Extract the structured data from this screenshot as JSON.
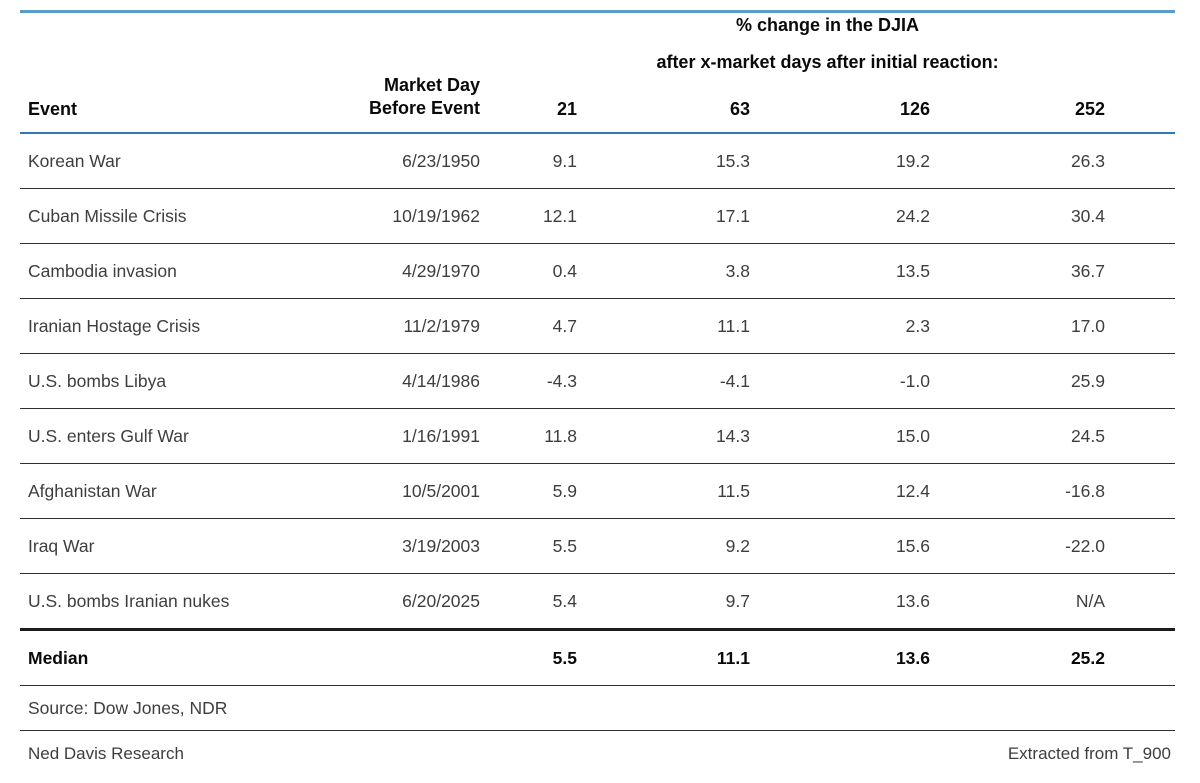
{
  "header": {
    "title_line1": "% change in the DJIA",
    "title_line2": "after x-market days after initial reaction:",
    "event_label": "Event",
    "date_label_line1": "Market Day",
    "date_label_line2": "Before Event",
    "days": [
      "21",
      "63",
      "126",
      "252"
    ]
  },
  "table": {
    "rows": [
      {
        "event": "Korean War",
        "date": "6/23/1950",
        "values": [
          "9.1",
          "15.3",
          "19.2",
          "26.3"
        ]
      },
      {
        "event": "Cuban Missile Crisis",
        "date": "10/19/1962",
        "values": [
          "12.1",
          "17.1",
          "24.2",
          "30.4"
        ]
      },
      {
        "event": "Cambodia invasion",
        "date": "4/29/1970",
        "values": [
          "0.4",
          "3.8",
          "13.5",
          "36.7"
        ]
      },
      {
        "event": "Iranian Hostage Crisis",
        "date": "11/2/1979",
        "values": [
          "4.7",
          "11.1",
          "2.3",
          "17.0"
        ]
      },
      {
        "event": "U.S. bombs Libya",
        "date": "4/14/1986",
        "values": [
          "-4.3",
          "-4.1",
          "-1.0",
          "25.9"
        ]
      },
      {
        "event": "U.S. enters Gulf War",
        "date": "1/16/1991",
        "values": [
          "11.8",
          "14.3",
          "15.0",
          "24.5"
        ]
      },
      {
        "event": "Afghanistan War",
        "date": "10/5/2001",
        "values": [
          "5.9",
          "11.5",
          "12.4",
          "-16.8"
        ]
      },
      {
        "event": "Iraq War",
        "date": "3/19/2003",
        "values": [
          "5.5",
          "9.2",
          "15.6",
          "-22.0"
        ]
      },
      {
        "event": "U.S. bombs Iranian nukes",
        "date": "6/20/2025",
        "values": [
          "5.4",
          "9.7",
          "13.6",
          "N/A"
        ]
      }
    ]
  },
  "median": {
    "label": "Median",
    "values": [
      "5.5",
      "11.1",
      "13.6",
      "25.2"
    ]
  },
  "source": "Source: Dow Jones, NDR",
  "footer": {
    "left": "Ned Davis Research",
    "right": "Extracted from T_900"
  },
  "colors": {
    "top_rule": "#5b9bc8",
    "header_rule": "#2e7cb5",
    "row_rule": "#2f2f2f",
    "thick_rule": "#1c1c1c",
    "body_text": "#3e3e3e",
    "heading_text": "#0a0a0a"
  },
  "chart_data": {
    "type": "table",
    "title": "% change in the DJIA after x-market days after initial reaction:",
    "columns": [
      "Event",
      "Market Day Before Event",
      "21",
      "63",
      "126",
      "252"
    ],
    "rows": [
      {
        "event": "Korean War",
        "market_day_before_event": "6/23/1950",
        "pct_change": {
          "21": 9.1,
          "63": 15.3,
          "126": 19.2,
          "252": 26.3
        }
      },
      {
        "event": "Cuban Missile Crisis",
        "market_day_before_event": "10/19/1962",
        "pct_change": {
          "21": 12.1,
          "63": 17.1,
          "126": 24.2,
          "252": 30.4
        }
      },
      {
        "event": "Cambodia invasion",
        "market_day_before_event": "4/29/1970",
        "pct_change": {
          "21": 0.4,
          "63": 3.8,
          "126": 13.5,
          "252": 36.7
        }
      },
      {
        "event": "Iranian Hostage Crisis",
        "market_day_before_event": "11/2/1979",
        "pct_change": {
          "21": 4.7,
          "63": 11.1,
          "126": 2.3,
          "252": 17.0
        }
      },
      {
        "event": "U.S. bombs Libya",
        "market_day_before_event": "4/14/1986",
        "pct_change": {
          "21": -4.3,
          "63": -4.1,
          "126": -1.0,
          "252": 25.9
        }
      },
      {
        "event": "U.S. enters Gulf War",
        "market_day_before_event": "1/16/1991",
        "pct_change": {
          "21": 11.8,
          "63": 14.3,
          "126": 15.0,
          "252": 24.5
        }
      },
      {
        "event": "Afghanistan War",
        "market_day_before_event": "10/5/2001",
        "pct_change": {
          "21": 5.9,
          "63": 11.5,
          "126": 12.4,
          "252": -16.8
        }
      },
      {
        "event": "Iraq War",
        "market_day_before_event": "3/19/2003",
        "pct_change": {
          "21": 5.5,
          "63": 9.2,
          "126": 15.6,
          "252": -22.0
        }
      },
      {
        "event": "U.S. bombs Iranian nukes",
        "market_day_before_event": "6/20/2025",
        "pct_change": {
          "21": 5.4,
          "63": 9.7,
          "126": 13.6,
          "252": null
        }
      }
    ],
    "median": {
      "21": 5.5,
      "63": 11.1,
      "126": 13.6,
      "252": 25.2
    },
    "source": "Source: Dow Jones, NDR",
    "publisher": "Ned Davis Research",
    "reference": "Extracted from T_900"
  }
}
